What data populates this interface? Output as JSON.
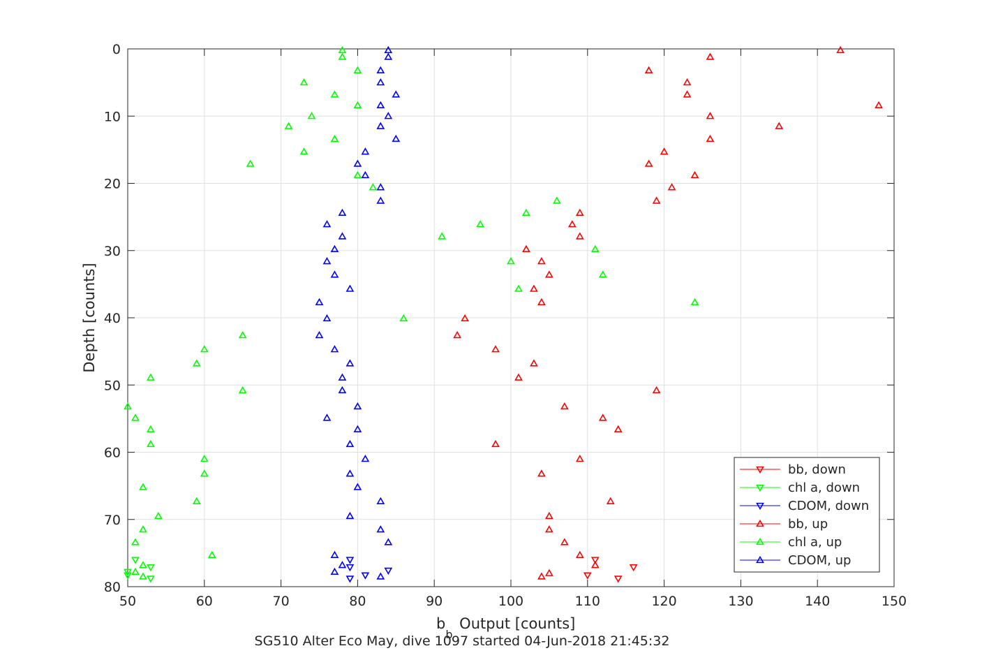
{
  "chart_data": {
    "type": "scatter",
    "title": "",
    "caption": "SG510 Alter Eco May, dive 1097 started 04-Jun-2018 21:45:32",
    "xlabel_main": "b",
    "xlabel_sub": "b",
    "xlabel_rest": " Output [counts]",
    "ylabel": "Depth [counts]",
    "xlim": [
      50,
      150
    ],
    "ylim": [
      0,
      80
    ],
    "y_reversed": true,
    "grid": true,
    "legend_position": "bottom-right",
    "xticks": [
      "50",
      "60",
      "70",
      "80",
      "90",
      "100",
      "110",
      "120",
      "130",
      "140",
      "150"
    ],
    "yticks": [
      "0",
      "10",
      "20",
      "30",
      "40",
      "50",
      "60",
      "70",
      "80"
    ],
    "series": [
      {
        "name": "bb, down",
        "color": "#ff0000",
        "marker": "triangle-down",
        "points": [
          [
            111,
            76
          ],
          [
            116,
            77.1
          ],
          [
            110,
            78.3
          ],
          [
            114,
            78.8
          ]
        ]
      },
      {
        "name": "chl a, down",
        "color": "#00ff00",
        "marker": "triangle-down",
        "points": [
          [
            51,
            76
          ],
          [
            53,
            77.1
          ],
          [
            50,
            77.8
          ],
          [
            50,
            78.3
          ],
          [
            53,
            78.8
          ]
        ]
      },
      {
        "name": "CDOM, down",
        "color": "#0000ff",
        "marker": "triangle-down",
        "points": [
          [
            79,
            76
          ],
          [
            79,
            77.1
          ],
          [
            84,
            77.6
          ],
          [
            81,
            78.3
          ],
          [
            79,
            78.8
          ]
        ]
      },
      {
        "name": "bb, up",
        "color": "#ff0000",
        "marker": "triangle-up",
        "points": [
          [
            143,
            0.2
          ],
          [
            126,
            1.2
          ],
          [
            118,
            3.2
          ],
          [
            123,
            5
          ],
          [
            123,
            6.8
          ],
          [
            148,
            8.4
          ],
          [
            126,
            10
          ],
          [
            135,
            11.5
          ],
          [
            126,
            13.4
          ],
          [
            120,
            15.3
          ],
          [
            118,
            17.1
          ],
          [
            124,
            18.8
          ],
          [
            121,
            20.6
          ],
          [
            119,
            22.6
          ],
          [
            109,
            24.4
          ],
          [
            108,
            26.1
          ],
          [
            109,
            27.9
          ],
          [
            102,
            29.8
          ],
          [
            104,
            31.6
          ],
          [
            105,
            33.6
          ],
          [
            103,
            35.7
          ],
          [
            104,
            37.7
          ],
          [
            94,
            40.1
          ],
          [
            93,
            42.6
          ],
          [
            98,
            44.7
          ],
          [
            103,
            46.8
          ],
          [
            101,
            48.9
          ],
          [
            119,
            50.8
          ],
          [
            107,
            53.2
          ],
          [
            112,
            54.9
          ],
          [
            114,
            56.6
          ],
          [
            98,
            58.8
          ],
          [
            109,
            61
          ],
          [
            104,
            63.2
          ],
          [
            113,
            67.3
          ],
          [
            105,
            69.5
          ],
          [
            105,
            71.5
          ],
          [
            107,
            73.4
          ],
          [
            109,
            75.3
          ],
          [
            111,
            76.8
          ],
          [
            105,
            78
          ],
          [
            104,
            78.5
          ]
        ]
      },
      {
        "name": "chl a, up",
        "color": "#00ff00",
        "marker": "triangle-up",
        "points": [
          [
            78,
            0.2
          ],
          [
            78,
            1.2
          ],
          [
            80,
            3.2
          ],
          [
            73,
            5
          ],
          [
            77,
            6.8
          ],
          [
            80,
            8.4
          ],
          [
            74,
            10
          ],
          [
            71,
            11.5
          ],
          [
            77,
            13.4
          ],
          [
            73,
            15.3
          ],
          [
            66,
            17.1
          ],
          [
            80,
            18.8
          ],
          [
            82,
            20.6
          ],
          [
            106,
            22.6
          ],
          [
            102,
            24.4
          ],
          [
            96,
            26.1
          ],
          [
            91,
            27.9
          ],
          [
            111,
            29.8
          ],
          [
            100,
            31.6
          ],
          [
            112,
            33.6
          ],
          [
            101,
            35.7
          ],
          [
            124,
            37.7
          ],
          [
            86,
            40.1
          ],
          [
            65,
            42.6
          ],
          [
            60,
            44.7
          ],
          [
            59,
            46.8
          ],
          [
            53,
            48.9
          ],
          [
            65,
            50.8
          ],
          [
            50,
            53.2
          ],
          [
            51,
            54.9
          ],
          [
            53,
            56.6
          ],
          [
            53,
            58.8
          ],
          [
            60,
            61
          ],
          [
            60,
            63.2
          ],
          [
            52,
            65.2
          ],
          [
            59,
            67.3
          ],
          [
            54,
            69.5
          ],
          [
            52,
            71.5
          ],
          [
            51,
            73.4
          ],
          [
            61,
            75.3
          ],
          [
            52,
            76.8
          ],
          [
            51,
            77.8
          ],
          [
            52,
            78.5
          ]
        ]
      },
      {
        "name": "CDOM, up",
        "color": "#0000ff",
        "marker": "triangle-up",
        "points": [
          [
            84,
            0.2
          ],
          [
            84,
            1.2
          ],
          [
            83,
            3.2
          ],
          [
            83,
            5
          ],
          [
            85,
            6.8
          ],
          [
            83,
            8.4
          ],
          [
            84,
            10
          ],
          [
            83,
            11.5
          ],
          [
            85,
            13.4
          ],
          [
            81,
            15.3
          ],
          [
            80,
            17.1
          ],
          [
            81,
            18.8
          ],
          [
            83,
            20.6
          ],
          [
            83,
            22.6
          ],
          [
            78,
            24.4
          ],
          [
            76,
            26.1
          ],
          [
            78,
            27.9
          ],
          [
            77,
            29.8
          ],
          [
            76,
            31.6
          ],
          [
            77,
            33.6
          ],
          [
            79,
            35.7
          ],
          [
            75,
            37.7
          ],
          [
            76,
            40.1
          ],
          [
            75,
            42.6
          ],
          [
            77,
            44.7
          ],
          [
            79,
            46.8
          ],
          [
            78,
            48.9
          ],
          [
            78,
            50.8
          ],
          [
            80,
            53.2
          ],
          [
            76,
            54.9
          ],
          [
            80,
            56.6
          ],
          [
            79,
            58.8
          ],
          [
            81,
            61
          ],
          [
            79,
            63.2
          ],
          [
            80,
            65.2
          ],
          [
            83,
            67.3
          ],
          [
            79,
            69.5
          ],
          [
            83,
            71.5
          ],
          [
            84,
            73.4
          ],
          [
            77,
            75.3
          ],
          [
            78,
            76.8
          ],
          [
            77,
            77.8
          ],
          [
            83,
            78.5
          ]
        ]
      }
    ]
  }
}
